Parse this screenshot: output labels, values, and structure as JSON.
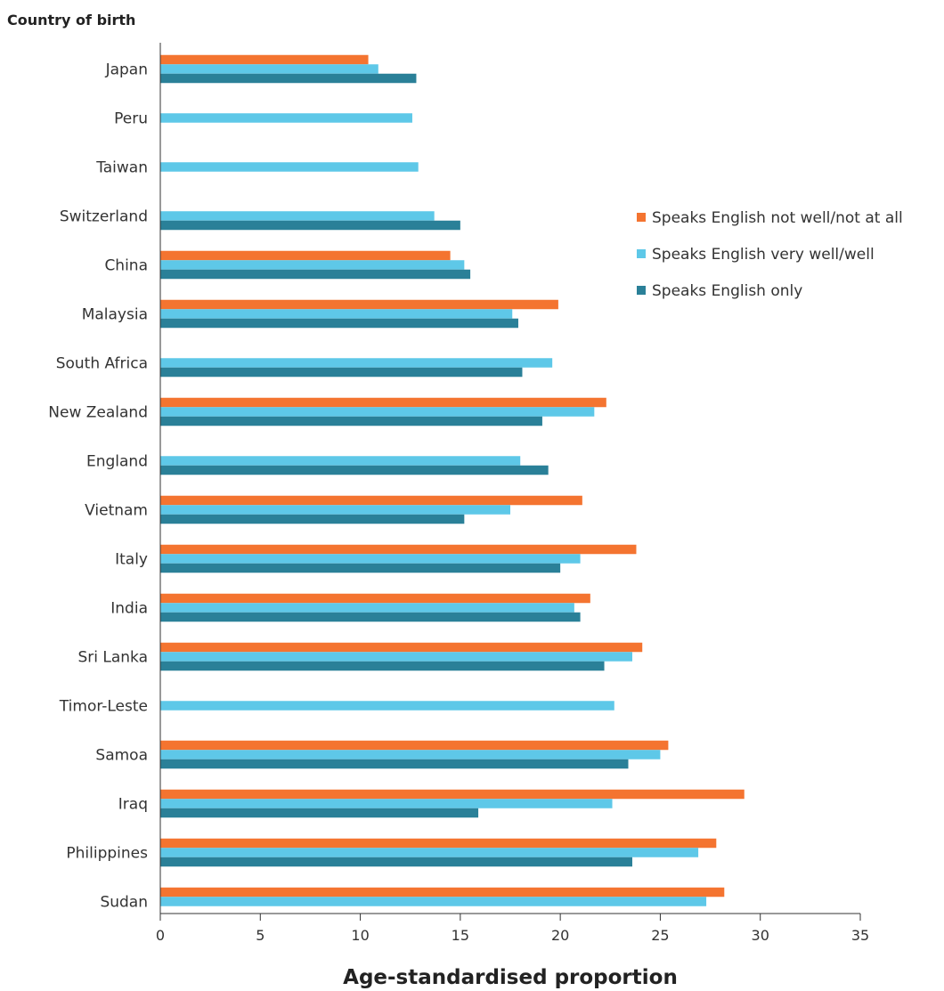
{
  "chart_data": {
    "type": "bar",
    "orientation": "horizontal",
    "title": "",
    "ylabel": "Country of birth",
    "xlabel": "Age-standardised proportion",
    "xlim": [
      0,
      35
    ],
    "xticks": [
      0,
      5,
      10,
      15,
      20,
      25,
      30,
      35
    ],
    "grid": false,
    "legend_position": "right",
    "categories": [
      "Japan",
      "Peru",
      "Taiwan",
      "Switzerland",
      "China",
      "Malaysia",
      "South Africa",
      "New Zealand",
      "England",
      "Vietnam",
      "Italy",
      "India",
      "Sri Lanka",
      "Timor-Leste",
      "Samoa",
      "Iraq",
      "Philippines",
      "Sudan"
    ],
    "series": [
      {
        "name": "Speaks English not well/not at all",
        "color": "#f47430",
        "values": [
          10.4,
          null,
          null,
          null,
          14.5,
          19.9,
          null,
          22.3,
          null,
          21.1,
          23.8,
          21.5,
          24.1,
          null,
          25.4,
          29.2,
          27.8,
          28.2
        ]
      },
      {
        "name": "Speaks English very well/well",
        "color": "#5ec8e8",
        "values": [
          10.9,
          12.6,
          12.9,
          13.7,
          15.2,
          17.6,
          19.6,
          21.7,
          18.0,
          17.5,
          21.0,
          20.7,
          23.6,
          22.7,
          25.0,
          22.6,
          26.9,
          27.3
        ]
      },
      {
        "name": "Speaks English only",
        "color": "#2a8098",
        "values": [
          12.8,
          null,
          null,
          15.0,
          15.5,
          17.9,
          18.1,
          19.1,
          19.4,
          15.2,
          20.0,
          21.0,
          22.2,
          null,
          23.4,
          15.9,
          23.6,
          null
        ]
      }
    ]
  }
}
